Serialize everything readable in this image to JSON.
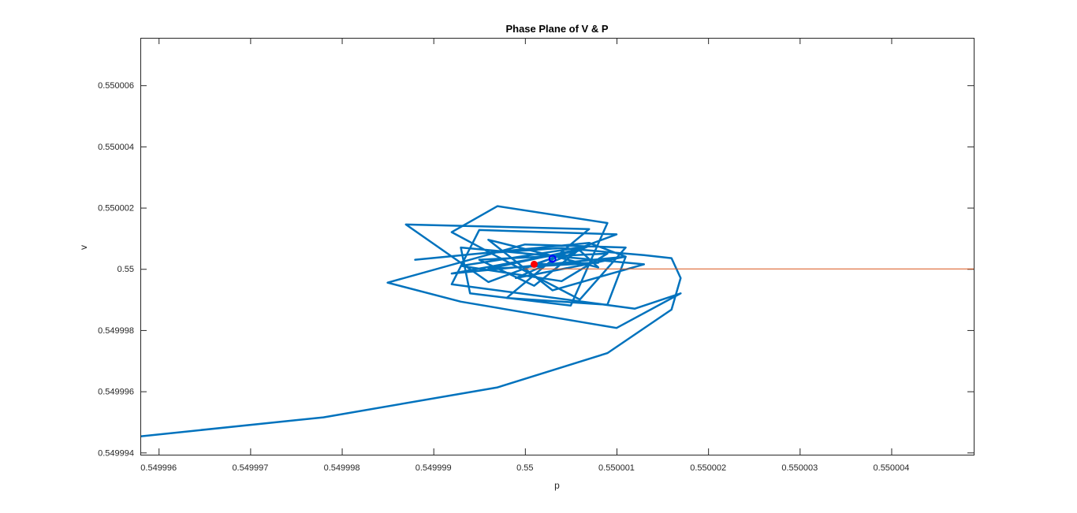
{
  "chart_data": {
    "type": "line",
    "title": "Phase Plane of V & P",
    "xlabel": "p",
    "ylabel": "v",
    "xlim": [
      0.5499958,
      0.5500049
    ],
    "ylim": [
      0.54999393,
      0.55000755
    ],
    "grid": false,
    "legend": "none",
    "x_ticks": [
      0.549996,
      0.549997,
      0.549998,
      0.549999,
      0.55,
      0.550001,
      0.550002,
      0.550003,
      0.550004
    ],
    "x_tick_labels": [
      "0.549996",
      "0.549997",
      "0.549998",
      "0.549999",
      "0.55",
      "0.550001",
      "0.550002",
      "0.550003",
      "0.550004"
    ],
    "y_ticks": [
      0.549994,
      0.549996,
      0.549998,
      0.55,
      0.550002,
      0.550004,
      0.550006
    ],
    "y_tick_labels": [
      "0.549994",
      "0.549996",
      "0.549998",
      "0.55",
      "0.550002",
      "0.550004",
      "0.550006"
    ],
    "series": [
      {
        "color": "#0072BD",
        "width": 2.5,
        "points": [
          [
            0.5499958,
            0.54999453
          ],
          [
            0.5499978,
            0.54999515
          ],
          [
            0.5499997,
            0.54999613
          ],
          [
            0.5500009,
            0.54999725
          ],
          [
            0.5500016,
            0.54999867
          ],
          [
            0.5500017,
            0.5499997
          ],
          [
            0.5500016,
            0.55000035
          ],
          [
            0.5500013,
            0.55000045
          ],
          [
            0.5500004,
            0.55000068
          ],
          [
            0.5499995,
            0.5500005
          ],
          [
            0.5499988,
            0.5500003
          ],
          [
            0.5500007,
            0.55000085
          ],
          [
            0.5500011,
            0.5500004
          ],
          [
            0.5500009,
            0.54999883
          ],
          [
            0.5499998,
            0.54999905
          ],
          [
            0.5500007,
            0.5500013
          ],
          [
            0.5499987,
            0.55000145
          ],
          [
            0.5499996,
            0.54999957
          ],
          [
            0.550001,
            0.55000113
          ],
          [
            0.5499995,
            0.55000127
          ],
          [
            0.5499992,
            0.5499995
          ],
          [
            0.5500012,
            0.5499987
          ],
          [
            0.5500017,
            0.5499992
          ],
          [
            0.550001,
            0.54999807
          ],
          [
            0.5499993,
            0.54999893
          ],
          [
            0.5499985,
            0.54999955
          ],
          [
            0.55,
            0.5500008
          ],
          [
            0.5500011,
            0.5500007
          ],
          [
            0.5500006,
            0.549999
          ],
          [
            0.5499997,
            0.5500004
          ],
          [
            0.5499992,
            0.5500012
          ],
          [
            0.5499997,
            0.55000205
          ],
          [
            0.5500009,
            0.5500015
          ],
          [
            0.5500005,
            0.5499988
          ],
          [
            0.5499994,
            0.5499992
          ],
          [
            0.5499993,
            0.5500007
          ],
          [
            0.5500013,
            0.55000015
          ],
          [
            0.5500003,
            0.5499993
          ],
          [
            0.5499996,
            0.55000095
          ],
          [
            0.5500008,
            0.55000005
          ],
          [
            0.5500006,
            0.5500006
          ],
          [
            0.5499992,
            0.54999985
          ],
          [
            0.5500011,
            0.5500004
          ],
          [
            0.5499999,
            0.5499997
          ],
          [
            0.5500007,
            0.55000075
          ],
          [
            0.5499993,
            0.5500001
          ],
          [
            0.5500004,
            0.5499996
          ],
          [
            0.5500009,
            0.5500005
          ],
          [
            0.5499995,
            0.5500003
          ],
          [
            0.5500001,
            0.54999945
          ],
          [
            0.5500006,
            0.55000065
          ],
          [
            0.5499996,
            0.55
          ],
          [
            0.5500008,
            0.5500002
          ],
          [
            0.5500001,
            0.55000015
          ],
          [
            0.5500003,
            0.55000035
          ]
        ]
      },
      {
        "color": "#D95319",
        "width": 1,
        "points": [
          [
            0.55,
            0.55
          ],
          [
            0.5500049,
            0.55
          ]
        ]
      }
    ],
    "markers": [
      {
        "type": "filled-circle",
        "color": "#FF0000",
        "x": 0.5500001,
        "y": 0.55000015
      },
      {
        "type": "open-circle",
        "color": "#0000FF",
        "x": 0.5500003,
        "y": 0.55000033
      }
    ]
  }
}
